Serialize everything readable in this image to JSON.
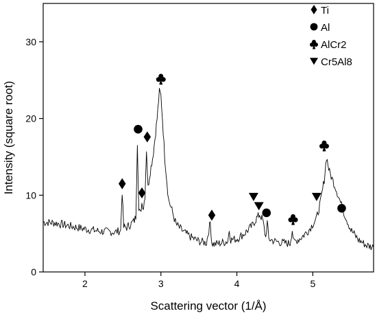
{
  "chart_data": {
    "type": "line",
    "xlabel": "Scattering vector (1/Å)",
    "ylabel": "Intensity (square root)",
    "xlim": [
      1.45,
      5.8
    ],
    "ylim": [
      0,
      35
    ],
    "xticks": [
      2,
      3,
      4,
      5
    ],
    "yticks": [
      0,
      10,
      20,
      30
    ],
    "grid": false,
    "legend_position": "top-right",
    "line_color": "#000000",
    "legend": [
      {
        "marker": "diamond",
        "label": "Ti"
      },
      {
        "marker": "circle",
        "label": "Al"
      },
      {
        "marker": "club",
        "label": "AlCr2"
      },
      {
        "marker": "triangle-down",
        "label": "Cr5Al8"
      }
    ],
    "series": [
      {
        "x": [
          1.45,
          1.6,
          1.8,
          2.0,
          2.2,
          2.4,
          2.47,
          2.49,
          2.51,
          2.55,
          2.6,
          2.65,
          2.67,
          2.69,
          2.71,
          2.73,
          2.75,
          2.77,
          2.79,
          2.81,
          2.83,
          2.85,
          2.9,
          2.95,
          2.98,
          3.0,
          3.02,
          3.05,
          3.1,
          3.2,
          3.3,
          3.4,
          3.5,
          3.6,
          3.65,
          3.67,
          3.7,
          3.8,
          3.88,
          3.9,
          3.92,
          4.0,
          4.1,
          4.2,
          4.26,
          4.3,
          4.34,
          4.38,
          4.4,
          4.42,
          4.5,
          4.6,
          4.7,
          4.73,
          4.75,
          4.77,
          4.85,
          4.95,
          5.05,
          5.1,
          5.15,
          5.18,
          5.22,
          5.3,
          5.4,
          5.5,
          5.6,
          5.7,
          5.8
        ],
        "y": [
          6.5,
          6.4,
          6.0,
          5.6,
          5.3,
          5.2,
          5.4,
          10.5,
          5.8,
          5.8,
          6.2,
          6.7,
          7.2,
          17.0,
          8.0,
          7.6,
          9.0,
          8.4,
          10.0,
          16.0,
          11.0,
          12.5,
          15.5,
          20.0,
          23.5,
          23.0,
          20.0,
          15.0,
          9.5,
          6.2,
          5.2,
          4.5,
          4.0,
          3.8,
          6.5,
          3.8,
          3.6,
          3.8,
          4.0,
          5.5,
          4.2,
          4.3,
          5.0,
          6.0,
          7.0,
          7.5,
          6.8,
          4.5,
          6.5,
          4.3,
          4.0,
          3.8,
          3.7,
          5.5,
          3.8,
          4.0,
          4.5,
          5.5,
          7.0,
          9.0,
          12.0,
          15.0,
          13.0,
          11.0,
          8.0,
          5.5,
          4.2,
          3.5,
          3.2
        ]
      }
    ],
    "annotations": [
      {
        "marker": "diamond",
        "x": 2.49,
        "y": 11.5
      },
      {
        "marker": "circle",
        "x": 2.7,
        "y": 18.6
      },
      {
        "marker": "diamond",
        "x": 2.75,
        "y": 10.3
      },
      {
        "marker": "diamond",
        "x": 2.82,
        "y": 17.6
      },
      {
        "marker": "club",
        "x": 3.0,
        "y": 25.2
      },
      {
        "marker": "diamond",
        "x": 3.67,
        "y": 7.4
      },
      {
        "marker": "triangle-down",
        "x": 4.22,
        "y": 9.8
      },
      {
        "marker": "triangle-down",
        "x": 4.29,
        "y": 8.6
      },
      {
        "marker": "circle",
        "x": 4.39,
        "y": 7.7
      },
      {
        "marker": "club",
        "x": 4.74,
        "y": 6.9
      },
      {
        "marker": "triangle-down",
        "x": 5.05,
        "y": 9.8
      },
      {
        "marker": "club",
        "x": 5.15,
        "y": 16.5
      },
      {
        "marker": "circle",
        "x": 5.38,
        "y": 8.3
      }
    ]
  }
}
